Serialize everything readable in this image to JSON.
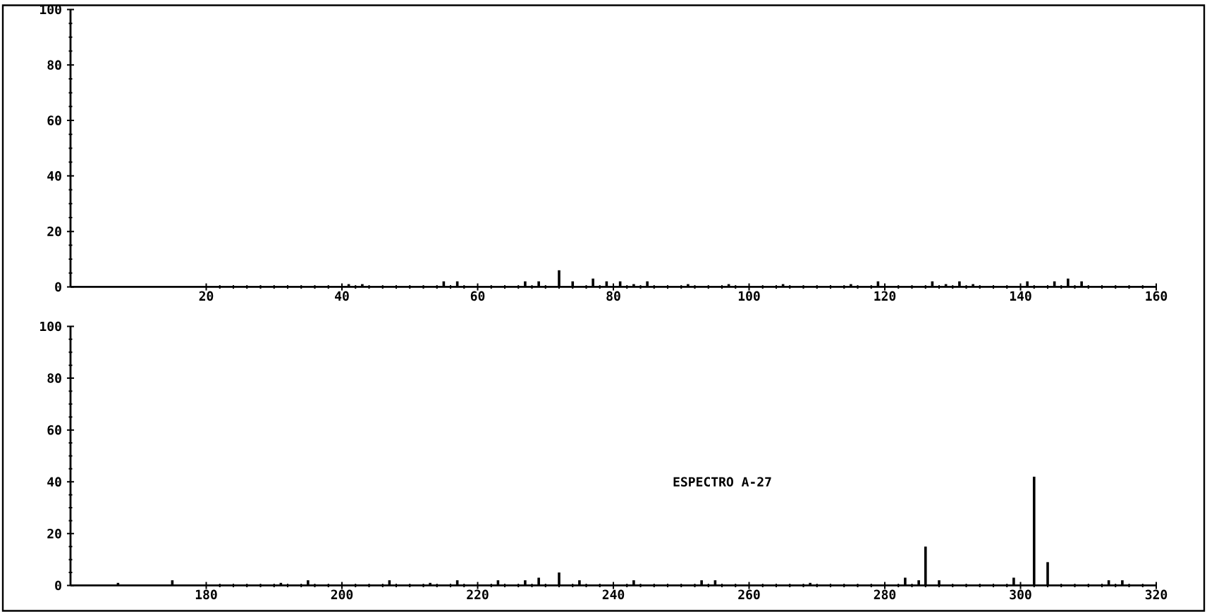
{
  "chart_data": [
    {
      "type": "bar",
      "xlim": [
        0,
        160
      ],
      "ylim": [
        0,
        100
      ],
      "xticks": [
        20,
        40,
        60,
        80,
        100,
        120,
        140,
        160
      ],
      "yticks": [
        0,
        20,
        40,
        60,
        80,
        100
      ],
      "grid": false,
      "series": [
        {
          "color": "#000000",
          "x": [
            41,
            43,
            55,
            57,
            67,
            69,
            72,
            74,
            77,
            79,
            81,
            83,
            85,
            91,
            97,
            105,
            115,
            119,
            127,
            129,
            131,
            133,
            141,
            145,
            147,
            149
          ],
          "values": [
            1,
            1,
            2,
            2,
            2,
            2,
            6,
            2,
            3,
            2,
            2,
            1,
            2,
            1,
            1,
            1,
            1,
            2,
            2,
            1,
            2,
            1,
            2,
            2,
            3,
            2
          ]
        }
      ]
    },
    {
      "type": "bar",
      "xlim": [
        160,
        320
      ],
      "ylim": [
        0,
        100
      ],
      "xticks": [
        180,
        200,
        220,
        240,
        260,
        280,
        300,
        320
      ],
      "yticks": [
        0,
        20,
        40,
        60,
        80,
        100
      ],
      "grid": false,
      "annotations": [
        "ESPECTRO A-27"
      ],
      "series": [
        {
          "color": "#000000",
          "x": [
            167,
            175,
            191,
            195,
            207,
            213,
            217,
            223,
            227,
            229,
            232,
            235,
            243,
            253,
            255,
            269,
            283,
            285,
            286,
            288,
            299,
            302,
            304,
            313,
            315
          ],
          "values": [
            1,
            2,
            1,
            2,
            2,
            1,
            2,
            2,
            2,
            3,
            5,
            2,
            2,
            2,
            2,
            1,
            3,
            2,
            15,
            2,
            3,
            42,
            9,
            2,
            2
          ]
        }
      ]
    }
  ]
}
